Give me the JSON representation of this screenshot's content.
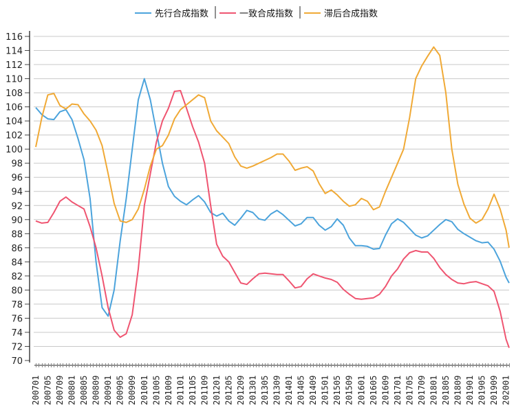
{
  "chart_data": {
    "type": "line",
    "title": "",
    "xlabel": "",
    "ylabel": "",
    "ylim": [
      70,
      116
    ],
    "y_ticks": [
      70,
      72,
      74,
      76,
      78,
      80,
      82,
      84,
      86,
      88,
      90,
      92,
      94,
      96,
      98,
      100,
      102,
      104,
      106,
      108,
      110,
      112,
      114,
      116
    ],
    "grid": "horizontal",
    "legend_position": "top-center",
    "x_start_month": "200701",
    "x_month_count": 158,
    "x_tick_labels": [
      "200701",
      "200705",
      "200709",
      "200801",
      "200805",
      "200809",
      "200901",
      "200905",
      "200909",
      "201001",
      "201005",
      "201009",
      "201101",
      "201105",
      "201109",
      "201201",
      "201205",
      "201209",
      "201301",
      "201305",
      "201309",
      "201401",
      "201405",
      "201409",
      "201501",
      "201505",
      "201509",
      "201601",
      "201605",
      "201609",
      "201701",
      "201705",
      "201709",
      "201801",
      "201805",
      "201809",
      "201901",
      "201905",
      "201909",
      "202001"
    ],
    "x_months_offset": [
      0,
      2,
      4,
      6,
      8,
      10,
      12,
      14,
      16,
      18,
      20,
      22,
      24,
      26,
      28,
      30,
      32,
      34,
      36,
      38,
      40,
      42,
      44,
      46,
      48,
      50,
      52,
      54,
      56,
      58,
      60,
      62,
      64,
      66,
      68,
      70,
      72,
      74,
      76,
      78,
      80,
      82,
      84,
      86,
      88,
      90,
      92,
      94,
      96,
      98,
      100,
      102,
      104,
      106,
      108,
      110,
      112,
      114,
      116,
      118,
      120,
      122,
      124,
      126,
      128,
      130,
      132,
      134,
      136,
      138,
      140,
      142,
      144,
      146,
      148,
      150,
      152,
      154,
      156,
      157
    ],
    "series": [
      {
        "name": "先行合成指数",
        "color": "#4ba3dc",
        "values": [
          105.9,
          104.9,
          104.3,
          104.2,
          105.3,
          105.6,
          104.2,
          101.5,
          98.5,
          93,
          84,
          77.5,
          76.3,
          80,
          87,
          93,
          100,
          107,
          110,
          107,
          102.5,
          98,
          94.7,
          93.3,
          92.6,
          92.1,
          92.8,
          93.4,
          92.5,
          91.0,
          90.5,
          90.9,
          89.8,
          89.2,
          90.2,
          91.3,
          91.0,
          90.1,
          89.9,
          90.8,
          91.3,
          90.7,
          89.9,
          89.1,
          89.4,
          90.3,
          90.3,
          89.2,
          88.5,
          89.0,
          90.1,
          89.2,
          87.4,
          86.3,
          86.3,
          86.2,
          85.8,
          85.9,
          87.8,
          89.4,
          90.1,
          89.6,
          88.7,
          87.8,
          87.4,
          87.7,
          88.5,
          89.3,
          90.0,
          89.7,
          88.6,
          88.0,
          87.5,
          87.0,
          86.7,
          86.8,
          85.8,
          84.1,
          81.8,
          81.0
        ]
      },
      {
        "name": "一致合成指数",
        "color": "#ef5470",
        "values": [
          89.8,
          89.5,
          89.6,
          91,
          92.6,
          93.2,
          92.5,
          92,
          91.5,
          89,
          86,
          82,
          77.5,
          74.3,
          73.3,
          73.8,
          76.5,
          83,
          92,
          96.5,
          101,
          104,
          105.8,
          108.2,
          108.3,
          105.8,
          103.2,
          101,
          98,
          92,
          86.5,
          84.8,
          84,
          82.5,
          81,
          80.8,
          81.6,
          82.3,
          82.4,
          82.3,
          82.2,
          82.2,
          81.3,
          80.3,
          80.5,
          81.6,
          82.3,
          82.0,
          81.7,
          81.5,
          81.1,
          80.1,
          79.4,
          78.8,
          78.7,
          78.8,
          78.9,
          79.4,
          80.5,
          82,
          83,
          84.4,
          85.3,
          85.6,
          85.4,
          85.4,
          84.5,
          83.2,
          82.2,
          81.5,
          81.0,
          80.9,
          81.1,
          81.2,
          80.9,
          80.6,
          79.8,
          77,
          73,
          71.8
        ]
      },
      {
        "name": "滞后合成指数",
        "color": "#f0a935",
        "values": [
          100.3,
          104.5,
          107.7,
          107.9,
          106.2,
          105.7,
          106.4,
          106.3,
          105,
          104,
          102.7,
          100.5,
          96.5,
          92.3,
          89.8,
          89.6,
          90,
          91.5,
          94.3,
          97.6,
          100,
          100.5,
          102,
          104.3,
          105.6,
          106.3,
          107,
          107.7,
          107.3,
          104,
          102.6,
          101.7,
          100.8,
          98.9,
          97.6,
          97.3,
          97.6,
          98.0,
          98.4,
          98.8,
          99.3,
          99.3,
          98.3,
          97,
          97.3,
          97.5,
          96.9,
          95.1,
          93.7,
          94.2,
          93.5,
          92.6,
          91.9,
          92.1,
          93.0,
          92.6,
          91.4,
          91.8,
          94,
          96,
          98,
          100,
          104.5,
          110,
          111.8,
          113.2,
          114.5,
          113.3,
          108,
          100,
          95,
          92.2,
          90.2,
          89.5,
          90,
          91.5,
          93.6,
          91.5,
          88.5,
          86
        ]
      }
    ]
  }
}
